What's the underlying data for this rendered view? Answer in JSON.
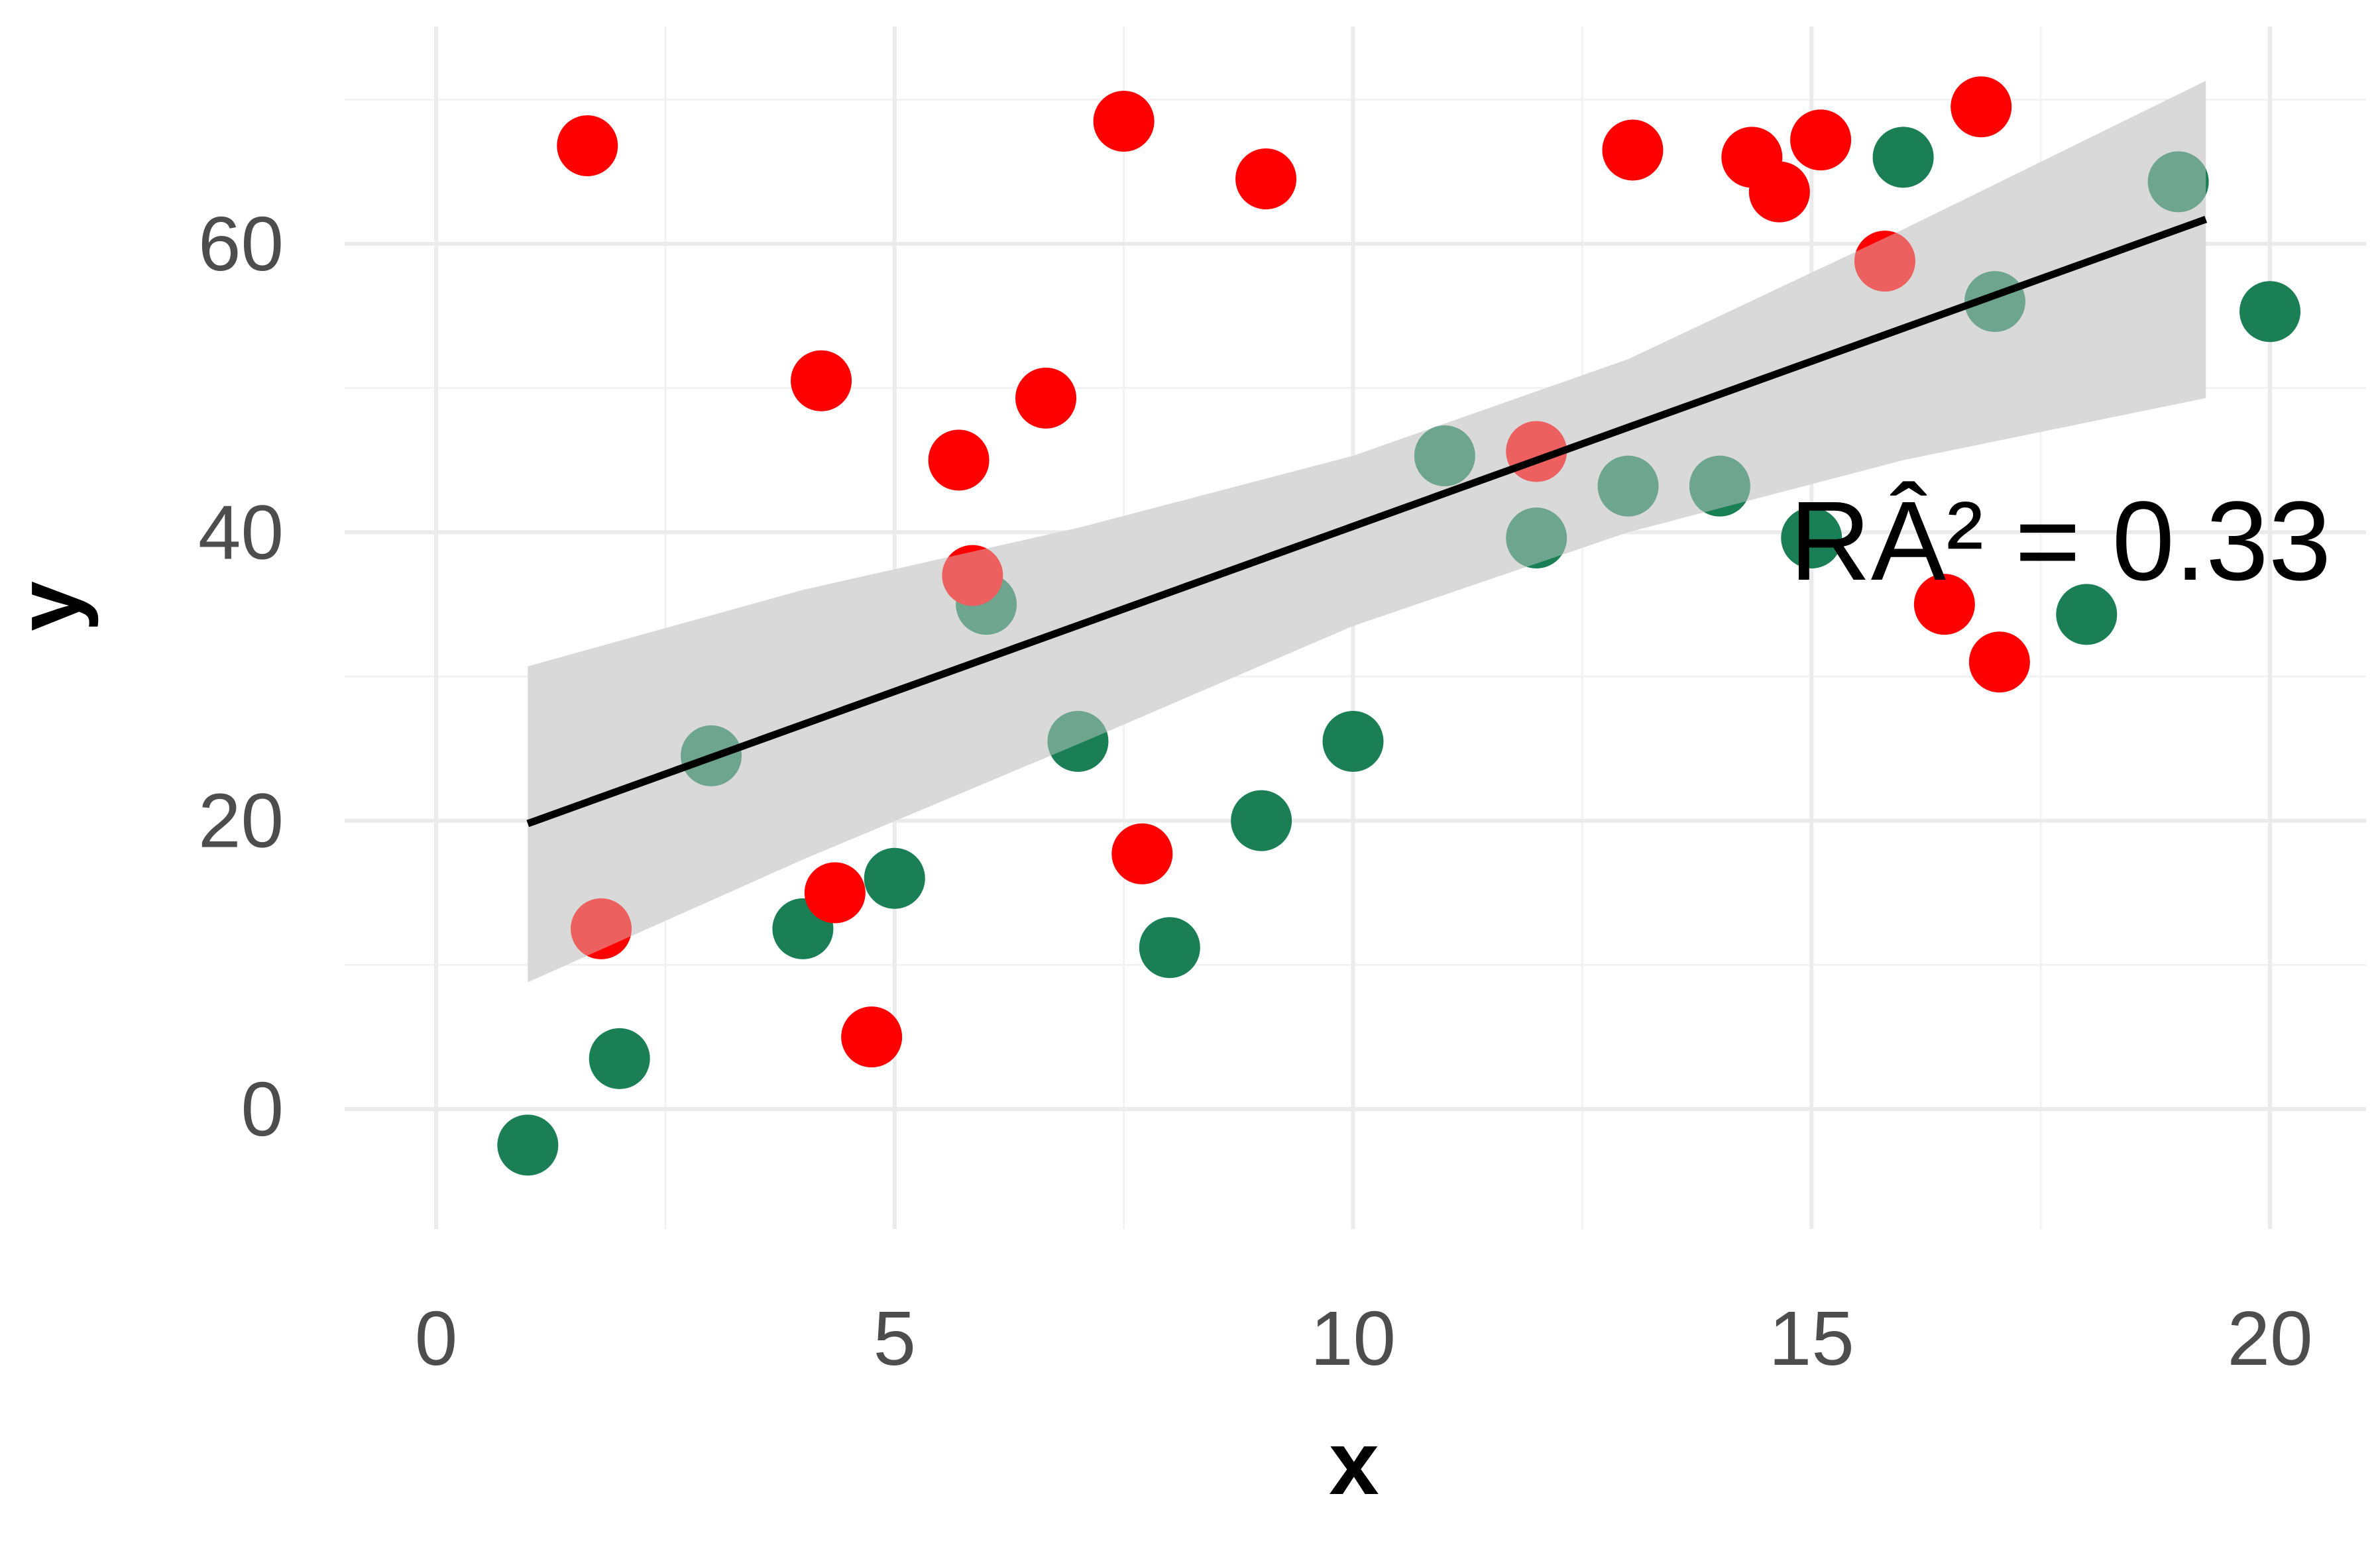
{
  "chart_data": {
    "type": "scatter",
    "xlabel": "x",
    "ylabel": "y",
    "xlim": [
      -0.6,
      21
    ],
    "ylim": [
      -8.5,
      75
    ],
    "x_ticks": [
      0,
      5,
      10,
      15,
      20
    ],
    "y_ticks": [
      0,
      20,
      40,
      60
    ],
    "x_tick_labels": [
      "0",
      "5",
      "10",
      "15",
      "20"
    ],
    "y_tick_labels": [
      "0",
      "20",
      "40",
      "60"
    ],
    "grid": true,
    "legend": "none",
    "colors": {
      "green": "#1b7f55",
      "red": "#ff0000",
      "band": "#d9d9d9",
      "line": "#000000"
    },
    "series": [
      {
        "values": [
          {
            "x": 1,
            "y": -2.5
          },
          {
            "x": 2,
            "y": 3.5
          },
          {
            "x": 3,
            "y": 24.5
          },
          {
            "x": 4,
            "y": 12.5
          },
          {
            "x": 5,
            "y": 16
          },
          {
            "x": 6,
            "y": 35
          },
          {
            "x": 7,
            "y": 25.5
          },
          {
            "x": 8,
            "y": 11.2
          },
          {
            "x": 9,
            "y": 20
          },
          {
            "x": 10,
            "y": 25.5
          },
          {
            "x": 11,
            "y": 45.3
          },
          {
            "x": 12,
            "y": 39.6
          },
          {
            "x": 13,
            "y": 43.2
          },
          {
            "x": 14,
            "y": 43.2
          },
          {
            "x": 15,
            "y": 39.6
          },
          {
            "x": 16,
            "y": 66
          },
          {
            "x": 17,
            "y": 56
          },
          {
            "x": 18,
            "y": 34.3
          },
          {
            "x": 19,
            "y": 64.3
          },
          {
            "x": 20,
            "y": 55.3
          }
        ]
      },
      {
        "values": [
          {
            "x": 1.65,
            "y": 66.8
          },
          {
            "x": 1.8,
            "y": 12.5
          },
          {
            "x": 4.2,
            "y": 50.5
          },
          {
            "x": 4.35,
            "y": 15
          },
          {
            "x": 4.75,
            "y": 5
          },
          {
            "x": 5.7,
            "y": 45
          },
          {
            "x": 5.85,
            "y": 37
          },
          {
            "x": 6.65,
            "y": 49.3
          },
          {
            "x": 7.5,
            "y": 68.5
          },
          {
            "x": 7.7,
            "y": 17.7
          },
          {
            "x": 9.05,
            "y": 64.5
          },
          {
            "x": 12,
            "y": 45.6
          },
          {
            "x": 13.05,
            "y": 66.5
          },
          {
            "x": 14.35,
            "y": 66
          },
          {
            "x": 14.65,
            "y": 63.6
          },
          {
            "x": 15.1,
            "y": 67.2
          },
          {
            "x": 15.8,
            "y": 58.8
          },
          {
            "x": 16.45,
            "y": 35
          },
          {
            "x": 16.85,
            "y": 69.5
          },
          {
            "x": 17.05,
            "y": 31
          }
        ]
      }
    ],
    "trend_line": {
      "x": [
        1,
        19.3
      ],
      "y": [
        19.8,
        61.7
      ]
    },
    "confidence_band": {
      "x": [
        1,
        4,
        7,
        10,
        13,
        16,
        19.3
      ],
      "lower": [
        8.8,
        17.3,
        25.3,
        33.5,
        40,
        45,
        49.3
      ],
      "upper": [
        30.7,
        36,
        40.3,
        45.3,
        52,
        61,
        71.3
      ]
    },
    "annotation": "RÂ² = 0.33"
  }
}
